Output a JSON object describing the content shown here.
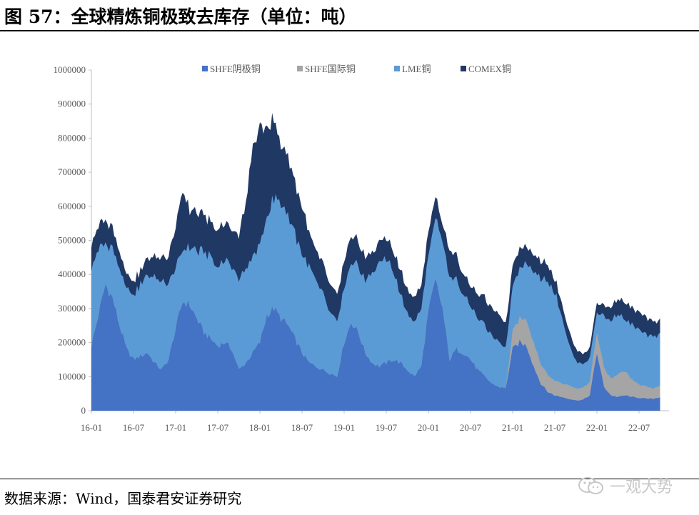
{
  "title": "图 57：全球精炼铜极致去库存（单位：吨）",
  "source": "数据来源：Wind，国泰君安证券研究",
  "watermark": "一观大势",
  "chart_data": {
    "type": "area",
    "stacked": true,
    "ylim": [
      0,
      1000000
    ],
    "yticks": [
      0,
      100000,
      200000,
      300000,
      400000,
      500000,
      600000,
      700000,
      800000,
      900000,
      1000000
    ],
    "ytick_labels": [
      "0",
      "100000",
      "200000",
      "300000",
      "400000",
      "500000",
      "600000",
      "700000",
      "800000",
      "900000",
      "1000000"
    ],
    "xticks": [
      "16-01",
      "16-07",
      "17-01",
      "17-07",
      "18-01",
      "18-07",
      "19-01",
      "19-07",
      "20-01",
      "20-07",
      "21-01",
      "21-07",
      "22-01",
      "22-07"
    ],
    "legend_position": "top",
    "x_months": [
      0,
      1,
      2,
      3,
      4,
      5,
      6,
      7,
      8,
      9,
      10,
      11,
      12,
      13,
      14,
      15,
      16,
      17,
      18,
      19,
      20,
      21,
      22,
      23,
      24,
      25,
      26,
      27,
      28,
      29,
      30,
      31,
      32,
      33,
      34,
      35,
      36,
      37,
      38,
      39,
      40,
      41,
      42,
      43,
      44,
      45,
      46,
      47,
      48,
      49,
      50,
      51,
      52,
      53,
      54,
      55,
      56,
      57,
      58,
      59,
      60,
      61,
      62,
      63,
      64,
      65,
      66,
      67,
      68,
      69,
      70,
      71,
      72,
      73,
      74,
      75,
      76,
      77,
      78,
      79,
      80,
      81
    ],
    "series": [
      {
        "name": "SHFE阴极铜",
        "color": "#4472c4",
        "values": [
          190000,
          280000,
          370000,
          330000,
          250000,
          180000,
          150000,
          160000,
          170000,
          140000,
          120000,
          150000,
          240000,
          320000,
          310000,
          270000,
          230000,
          210000,
          190000,
          200000,
          180000,
          120000,
          140000,
          170000,
          200000,
          280000,
          300000,
          270000,
          250000,
          210000,
          170000,
          140000,
          130000,
          120000,
          110000,
          100000,
          200000,
          260000,
          230000,
          170000,
          140000,
          130000,
          140000,
          150000,
          140000,
          120000,
          100000,
          130000,
          290000,
          380000,
          300000,
          150000,
          180000,
          170000,
          150000,
          120000,
          100000,
          80000,
          70000,
          65000,
          180000,
          200000,
          190000,
          130000,
          80000,
          55000,
          45000,
          40000,
          35000,
          30000,
          32000,
          45000,
          170000,
          70000,
          45000,
          40000,
          45000,
          40000,
          38000,
          35000,
          35000,
          40000
        ]
      },
      {
        "name": "SHFE国际铜",
        "color": "#a5a5a5",
        "values": [
          0,
          0,
          0,
          0,
          0,
          0,
          0,
          0,
          0,
          0,
          0,
          0,
          0,
          0,
          0,
          0,
          0,
          0,
          0,
          0,
          0,
          0,
          0,
          0,
          0,
          0,
          0,
          0,
          0,
          0,
          0,
          0,
          0,
          0,
          0,
          0,
          0,
          0,
          0,
          0,
          0,
          0,
          0,
          0,
          0,
          0,
          0,
          0,
          0,
          0,
          0,
          0,
          0,
          0,
          0,
          0,
          0,
          0,
          0,
          0,
          50000,
          70000,
          80000,
          70000,
          60000,
          50000,
          45000,
          40000,
          40000,
          35000,
          35000,
          40000,
          60000,
          55000,
          50000,
          65000,
          70000,
          50000,
          40000,
          35000,
          30000,
          35000
        ]
      },
      {
        "name": "LME铜",
        "color": "#5b9bd5",
        "values": [
          230000,
          190000,
          120000,
          150000,
          170000,
          180000,
          190000,
          210000,
          230000,
          250000,
          260000,
          230000,
          180000,
          150000,
          170000,
          200000,
          230000,
          240000,
          230000,
          240000,
          250000,
          260000,
          280000,
          280000,
          280000,
          300000,
          320000,
          340000,
          320000,
          310000,
          290000,
          280000,
          250000,
          220000,
          180000,
          160000,
          160000,
          170000,
          200000,
          210000,
          270000,
          300000,
          310000,
          260000,
          200000,
          170000,
          160000,
          170000,
          160000,
          180000,
          200000,
          240000,
          200000,
          180000,
          160000,
          150000,
          150000,
          140000,
          130000,
          120000,
          130000,
          150000,
          170000,
          210000,
          250000,
          280000,
          260000,
          200000,
          120000,
          80000,
          70000,
          70000,
          60000,
          150000,
          170000,
          180000,
          150000,
          160000,
          160000,
          150000,
          150000,
          150000
        ]
      },
      {
        "name": "COMEX铜",
        "color": "#203864",
        "values": [
          70000,
          70000,
          70000,
          60000,
          50000,
          40000,
          40000,
          40000,
          50000,
          60000,
          70000,
          80000,
          120000,
          180000,
          110000,
          110000,
          110000,
          100000,
          110000,
          110000,
          110000,
          130000,
          190000,
          330000,
          350000,
          260000,
          230000,
          170000,
          170000,
          150000,
          140000,
          100000,
          90000,
          90000,
          80000,
          80000,
          80000,
          80000,
          70000,
          70000,
          60000,
          60000,
          60000,
          60000,
          70000,
          70000,
          70000,
          70000,
          70000,
          60000,
          50000,
          80000,
          70000,
          60000,
          60000,
          70000,
          80000,
          80000,
          80000,
          70000,
          60000,
          60000,
          50000,
          50000,
          50000,
          50000,
          40000,
          40000,
          40000,
          35000,
          30000,
          30000,
          30000,
          30000,
          40000,
          45000,
          50000,
          50000,
          50000,
          50000,
          45000,
          40000
        ]
      }
    ]
  }
}
